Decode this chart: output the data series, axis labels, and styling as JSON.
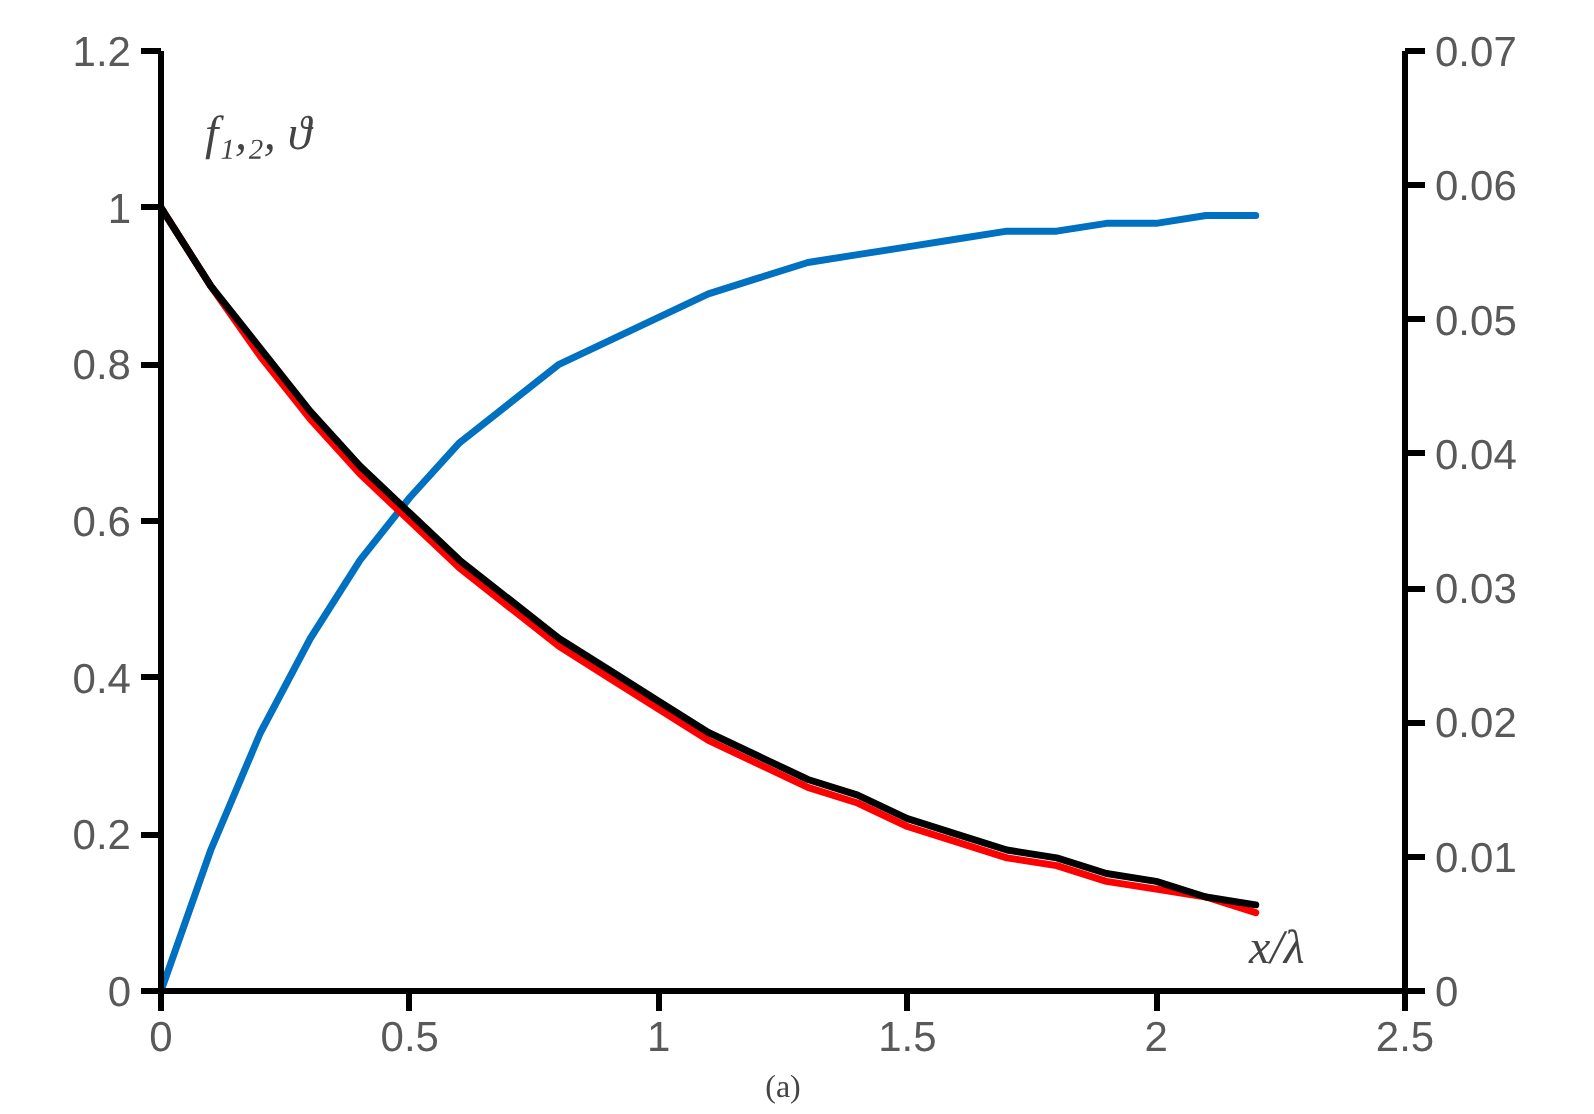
{
  "chart_data": {
    "type": "line",
    "xlabel": "x/λ",
    "ylabel": "f₁,₂, ϑ",
    "annotations": [
      "(a)"
    ],
    "x": [
      0,
      0.1,
      0.2,
      0.3,
      0.4,
      0.5,
      0.6,
      0.7,
      0.8,
      0.9,
      1.0,
      1.1,
      1.2,
      1.3,
      1.4,
      1.5,
      1.6,
      1.7,
      1.8,
      1.9,
      2.0,
      2.1,
      2.2
    ],
    "series": [
      {
        "color": "#0070c0",
        "values": [
          0,
          0.18,
          0.33,
          0.45,
          0.55,
          0.63,
          0.7,
          0.75,
          0.8,
          0.83,
          0.86,
          0.89,
          0.91,
          0.93,
          0.94,
          0.95,
          0.96,
          0.97,
          0.97,
          0.98,
          0.98,
          0.99,
          0.99
        ]
      },
      {
        "color": "#ff0000",
        "values": [
          1,
          0.9,
          0.81,
          0.73,
          0.66,
          0.6,
          0.54,
          0.49,
          0.44,
          0.4,
          0.36,
          0.32,
          0.29,
          0.26,
          0.24,
          0.21,
          0.19,
          0.17,
          0.16,
          0.14,
          0.13,
          0.12,
          0.1
        ]
      },
      {
        "color": "#000000",
        "values": [
          1,
          0.9,
          0.82,
          0.74,
          0.67,
          0.61,
          0.55,
          0.5,
          0.45,
          0.41,
          0.37,
          0.33,
          0.3,
          0.27,
          0.25,
          0.22,
          0.2,
          0.18,
          0.17,
          0.15,
          0.14,
          0.12,
          0.11
        ]
      }
    ],
    "xlim": [
      0,
      2.5
    ],
    "xticks": [
      0,
      0.5,
      1,
      1.5,
      2,
      2.5
    ],
    "ylim": [
      0,
      1.2
    ],
    "yticks": [
      0,
      0.2,
      0.4,
      0.6,
      0.8,
      1,
      1.2
    ],
    "y2lim": [
      0,
      0.07
    ],
    "y2ticks": [
      0,
      0.01,
      0.02,
      0.03,
      0.04,
      0.05,
      0.06,
      0.07
    ],
    "grid": false,
    "line_style": "solid"
  }
}
